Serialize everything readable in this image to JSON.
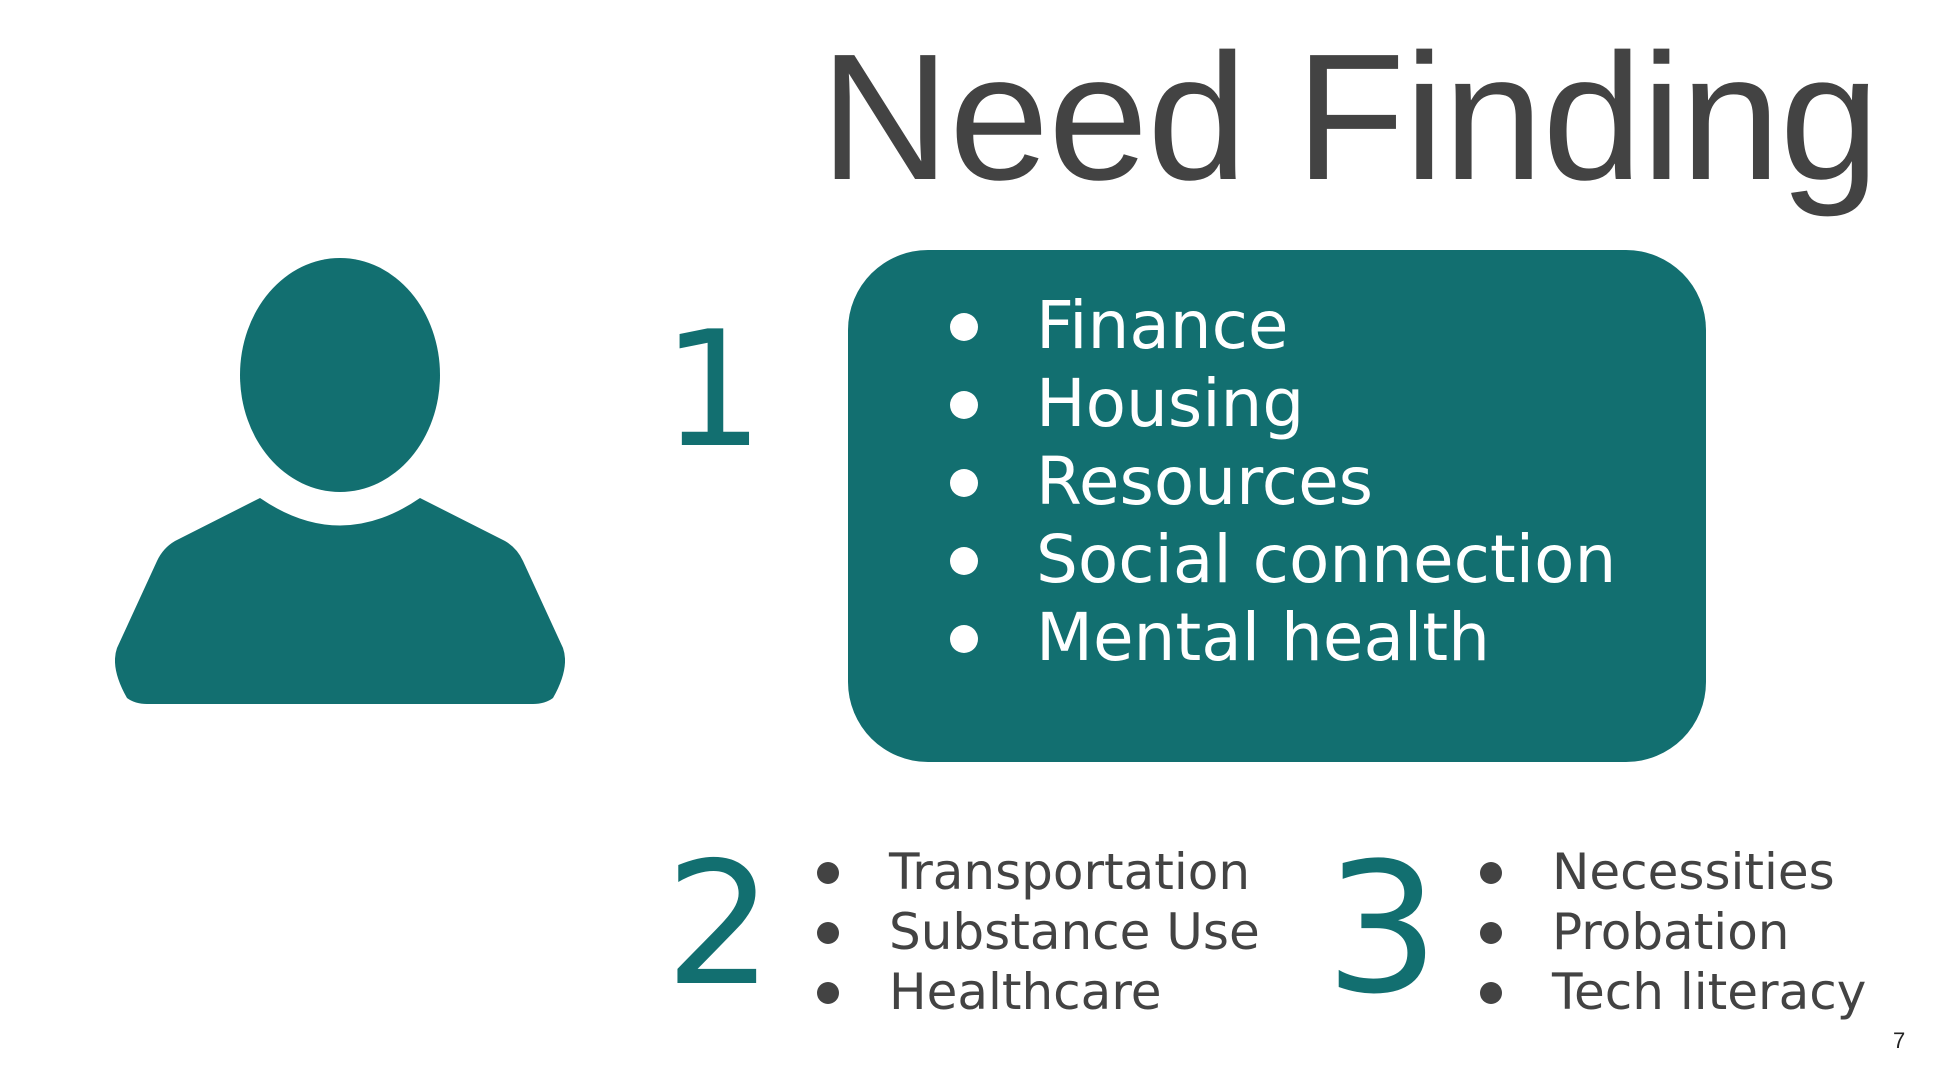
{
  "slide": {
    "title": "Need Finding",
    "page_number": "7",
    "accent_color": "#126f70",
    "text_color": "#434343",
    "icon": "person-icon",
    "group1": {
      "number": "1",
      "items": [
        "Finance",
        "Housing",
        "Resources",
        "Social connection",
        "Mental health"
      ]
    },
    "group2": {
      "number": "2",
      "items": [
        "Transportation",
        "Substance Use",
        "Healthcare"
      ]
    },
    "group3": {
      "number": "3",
      "items": [
        "Necessities",
        "Probation",
        "Tech literacy"
      ]
    }
  }
}
